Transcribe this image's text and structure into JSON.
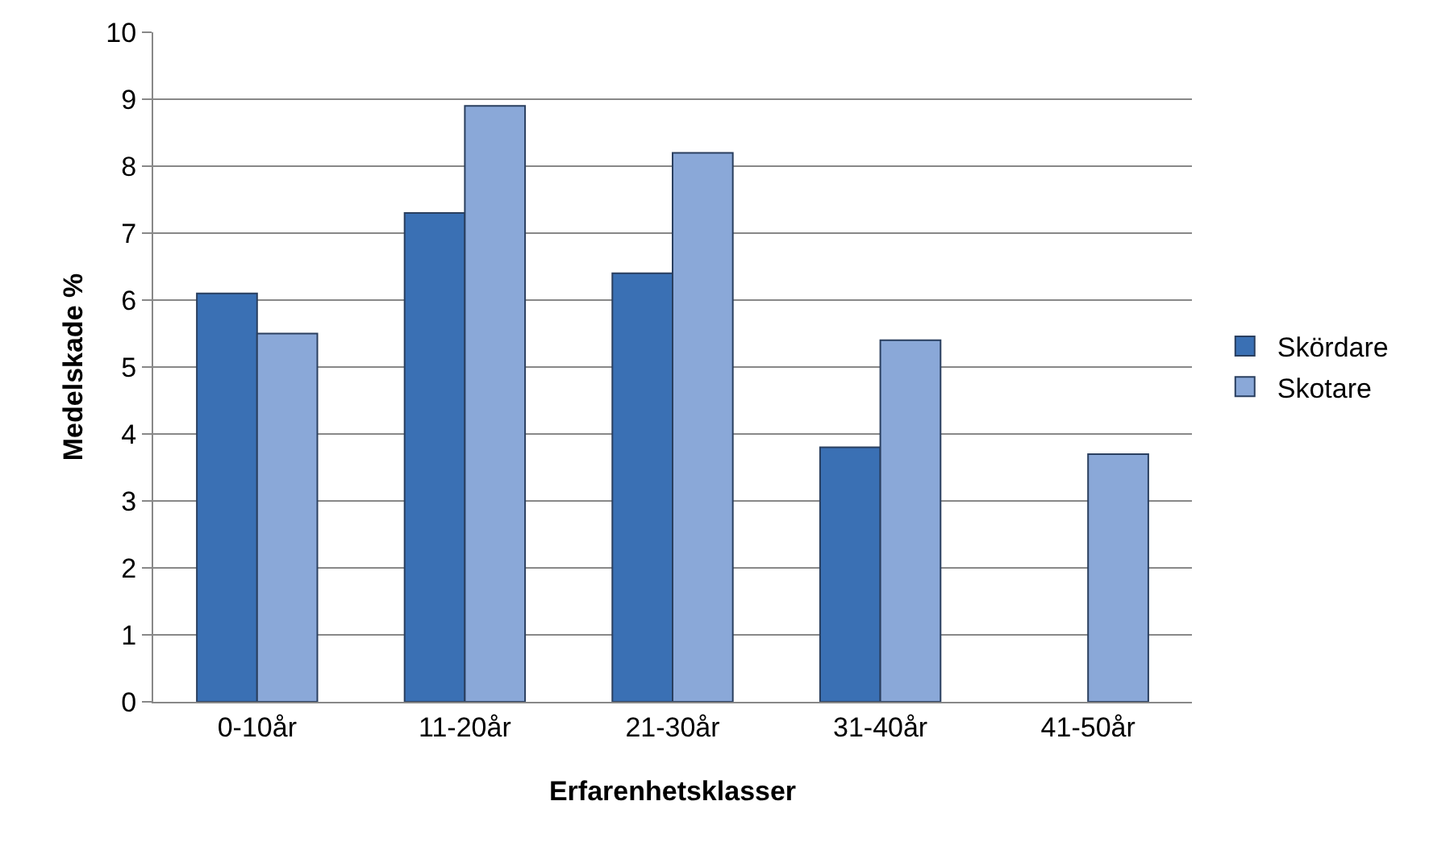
{
  "chart_data": {
    "type": "bar",
    "xlabel": "Erfarenhetsklasser",
    "ylabel": "Medelskade %",
    "categories": [
      "0-10år",
      "11-20år",
      "21-30år",
      "31-40år",
      "41-50år"
    ],
    "series": [
      {
        "name": "Skördare",
        "color": "#3a70b4",
        "values": [
          6.1,
          7.3,
          6.4,
          3.8,
          null
        ]
      },
      {
        "name": "Skotare",
        "color": "#8aa8d8",
        "values": [
          5.5,
          8.9,
          8.2,
          5.4,
          3.7
        ]
      }
    ],
    "ylim": [
      0,
      10
    ],
    "yticks": [
      0,
      1,
      2,
      3,
      4,
      5,
      6,
      7,
      8,
      9,
      10
    ],
    "grid": "y",
    "legend": "right"
  }
}
